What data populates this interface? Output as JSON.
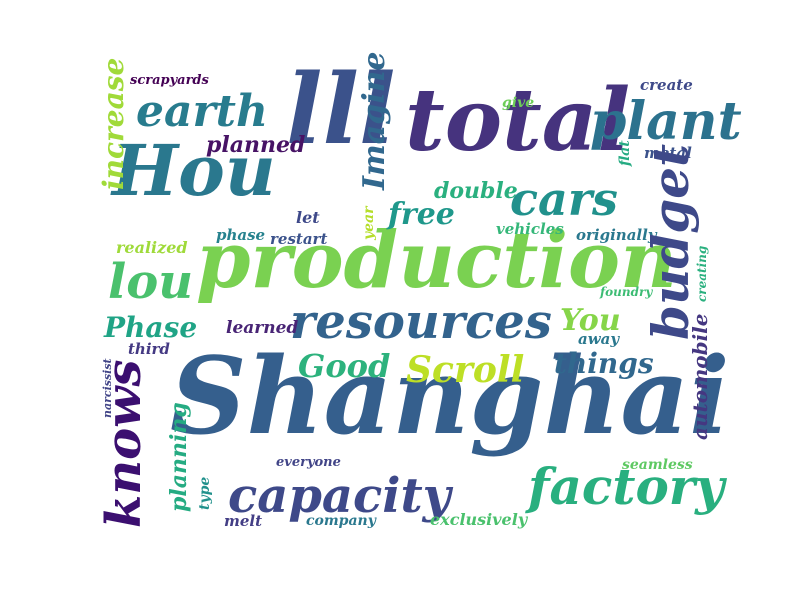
{
  "words": [
    {
      "text": "Shanghai",
      "color": "#355f8d",
      "vertical": false
    },
    {
      "text": "production",
      "color": "#7ad151",
      "vertical": false
    },
    {
      "text": "total",
      "color": "#46337e",
      "vertical": false
    },
    {
      "text": "Hou",
      "color": "#2a788e",
      "vertical": false
    },
    {
      "text": "lll",
      "color": "#3b528b",
      "vertical": false
    },
    {
      "text": "plant",
      "color": "#2c728e",
      "vertical": false
    },
    {
      "text": "earth",
      "color": "#287c8e",
      "vertical": false
    },
    {
      "text": "cars",
      "color": "#21918c",
      "vertical": false
    },
    {
      "text": "resources",
      "color": "#33638d",
      "vertical": false
    },
    {
      "text": "factory",
      "color": "#29af7f",
      "vertical": false
    },
    {
      "text": "capacity",
      "color": "#3e4989",
      "vertical": false
    },
    {
      "text": "lou",
      "color": "#4ac16d",
      "vertical": false
    },
    {
      "text": "Scroll",
      "color": "#bddf26",
      "vertical": false
    },
    {
      "text": "Good",
      "color": "#2db27d",
      "vertical": false
    },
    {
      "text": "things",
      "color": "#31688e",
      "vertical": false
    },
    {
      "text": "Phase",
      "color": "#20a486",
      "vertical": false
    },
    {
      "text": "free",
      "color": "#1f988b",
      "vertical": false
    },
    {
      "text": "double",
      "color": "#2ab07f",
      "vertical": false
    },
    {
      "text": "You",
      "color": "#86d549",
      "vertical": false
    },
    {
      "text": "planned",
      "color": "#471365",
      "vertical": false
    },
    {
      "text": "realized",
      "color": "#9fda3a",
      "vertical": false
    },
    {
      "text": "phase",
      "color": "#26828e",
      "vertical": false
    },
    {
      "text": "restart",
      "color": "#3b528b",
      "vertical": false
    },
    {
      "text": "let",
      "color": "#3e4989",
      "vertical": false
    },
    {
      "text": "vehicles",
      "color": "#35b779",
      "vertical": false
    },
    {
      "text": "originally",
      "color": "#2a788e",
      "vertical": false
    },
    {
      "text": "learned",
      "color": "#482475",
      "vertical": false
    },
    {
      "text": "third",
      "color": "#443983",
      "vertical": false
    },
    {
      "text": "away",
      "color": "#2a788e",
      "vertical": false
    },
    {
      "text": "foundry",
      "color": "#3dbc74",
      "vertical": false
    },
    {
      "text": "everyone",
      "color": "#414487",
      "vertical": false
    },
    {
      "text": "seamless",
      "color": "#5ec962",
      "vertical": false
    },
    {
      "text": "melt",
      "color": "#433e85",
      "vertical": false
    },
    {
      "text": "company",
      "color": "#2a788e",
      "vertical": false
    },
    {
      "text": "exclusively",
      "color": "#4ac16d",
      "vertical": false
    },
    {
      "text": "metal",
      "color": "#3b528b",
      "vertical": false
    },
    {
      "text": "create",
      "color": "#3e4989",
      "vertical": false
    },
    {
      "text": "give",
      "color": "#6ece58",
      "vertical": false
    },
    {
      "text": "scrapyards",
      "color": "#440154",
      "vertical": false
    },
    {
      "text": "increase",
      "color": "#a0da39",
      "vertical": true
    },
    {
      "text": "Imagine",
      "color": "#31688e",
      "vertical": true
    },
    {
      "text": "budget",
      "color": "#3e4989",
      "vertical": true
    },
    {
      "text": "knows",
      "color": "#3b0f70",
      "vertical": true
    },
    {
      "text": "automobile",
      "color": "#453781",
      "vertical": true
    },
    {
      "text": "planning",
      "color": "#25ab82",
      "vertical": true
    },
    {
      "text": "narcissist",
      "color": "#414487",
      "vertical": true
    },
    {
      "text": "type",
      "color": "#21918c",
      "vertical": true
    },
    {
      "text": "year",
      "color": "#b5de2b",
      "vertical": true
    },
    {
      "text": "flat",
      "color": "#25ab82",
      "vertical": true
    },
    {
      "text": "creating",
      "color": "#2ab07f",
      "vertical": true
    }
  ]
}
